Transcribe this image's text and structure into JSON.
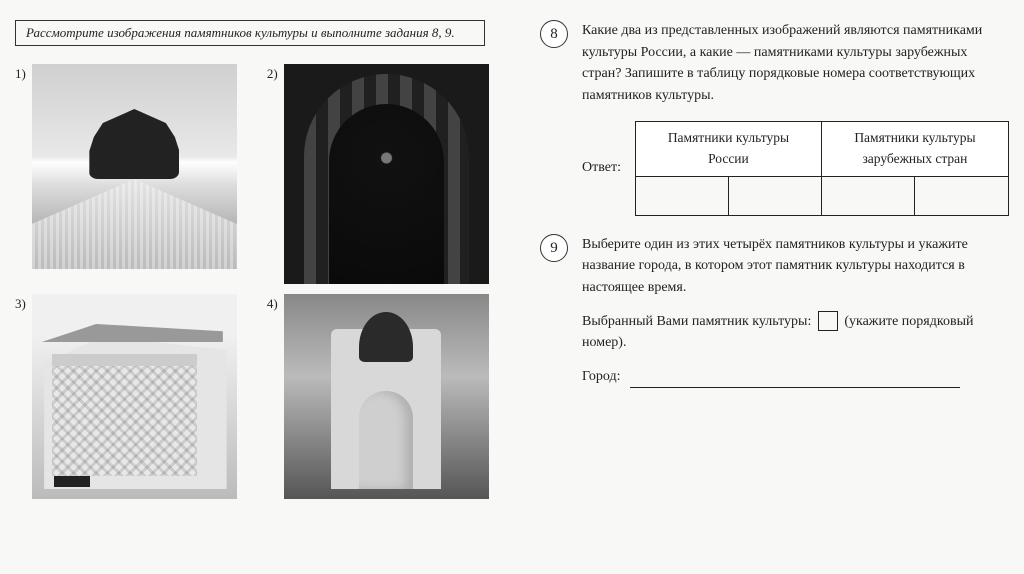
{
  "instruction": "Рассмотрите изображения памятников культуры и выполните задания 8, 9.",
  "images": {
    "n1": "1)",
    "n2": "2)",
    "n3": "3)",
    "n4": "4)"
  },
  "task8": {
    "num": "8",
    "text": "Какие два из представленных изображений являются памятниками культуры России, а какие — памятниками культуры зарубежных стран? Запишите в таблицу порядковые номера соответствующих памятников культуры.",
    "answer_label": "Ответ:",
    "table": {
      "col1": "Памятники культуры России",
      "col2": "Памятники культуры зарубежных стран"
    }
  },
  "task9": {
    "num": "9",
    "text": "Выберите один из этих четырёх памятников культуры и укажите название города, в котором этот памятник культуры находится в настоящее время.",
    "selected_label_before": "Выбранный Вами памятник культуры:",
    "selected_label_after": "(укажите порядковый номер).",
    "city_label": "Город:"
  }
}
